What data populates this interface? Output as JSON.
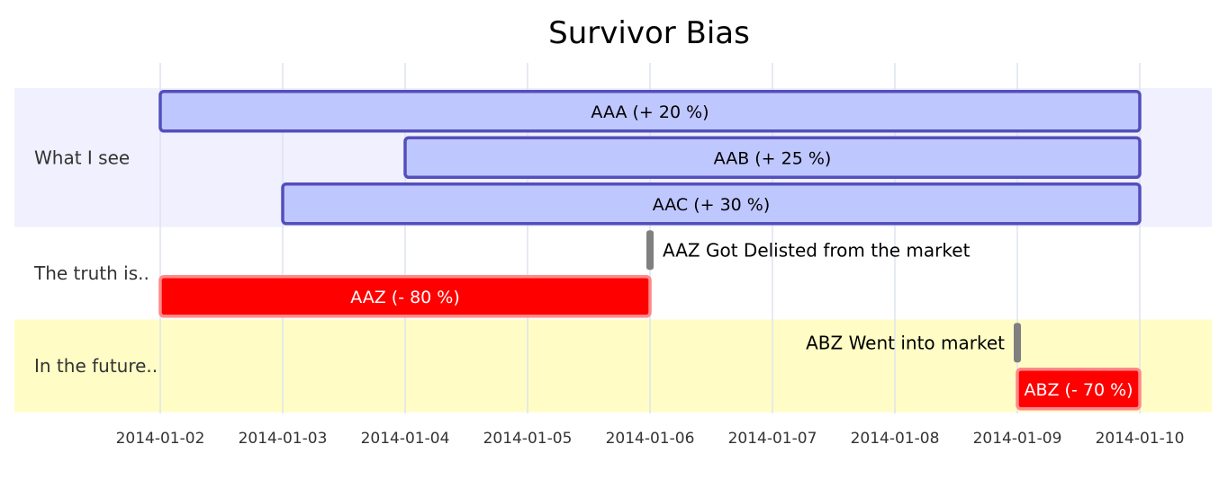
{
  "chart_data": {
    "type": "gantt",
    "title": "Survivor Bias",
    "x_ticks": [
      "2014-01-02",
      "2014-01-03",
      "2014-01-04",
      "2014-01-05",
      "2014-01-06",
      "2014-01-07",
      "2014-01-08",
      "2014-01-09",
      "2014-01-10"
    ],
    "xlim": [
      "2014-01-02",
      "2014-01-10"
    ],
    "grid": true,
    "sections": [
      {
        "name": "What I see",
        "background": "#f0f0ff"
      },
      {
        "name": "The truth is..",
        "background": "#ffffff"
      },
      {
        "name": "In the future..",
        "background": "#fffdc5"
      }
    ],
    "tasks": [
      {
        "section": 0,
        "label": "AAA (+ 20 %)",
        "start": "2014-01-02",
        "end": "2014-01-10",
        "kind": "normal"
      },
      {
        "section": 0,
        "label": "AAB (+ 25 %)",
        "start": "2014-01-04",
        "end": "2014-01-10",
        "kind": "normal"
      },
      {
        "section": 0,
        "label": "AAC (+ 30 %)",
        "start": "2014-01-03",
        "end": "2014-01-10",
        "kind": "normal"
      },
      {
        "section": 1,
        "label": "AAZ Got Delisted from the market",
        "start": "2014-01-06",
        "end": "2014-01-06",
        "kind": "milestone",
        "label_side": "right"
      },
      {
        "section": 1,
        "label": "AAZ (- 80 %)",
        "start": "2014-01-02",
        "end": "2014-01-06",
        "kind": "critical"
      },
      {
        "section": 2,
        "label": "ABZ Went into market",
        "start": "2014-01-09",
        "end": "2014-01-09",
        "kind": "milestone",
        "label_side": "left"
      },
      {
        "section": 2,
        "label": "ABZ (- 70 %)",
        "start": "2014-01-09",
        "end": "2014-01-10",
        "kind": "critical"
      }
    ],
    "colors": {
      "normal_fill": "#bfc7ff",
      "normal_stroke": "#534fbc",
      "normal_text": "#000000",
      "critical_fill": "#ff0000",
      "critical_stroke": "#ff8888",
      "critical_text": "#ffffff",
      "milestone_fill": "#808080",
      "grid": "#dde3ef"
    }
  }
}
